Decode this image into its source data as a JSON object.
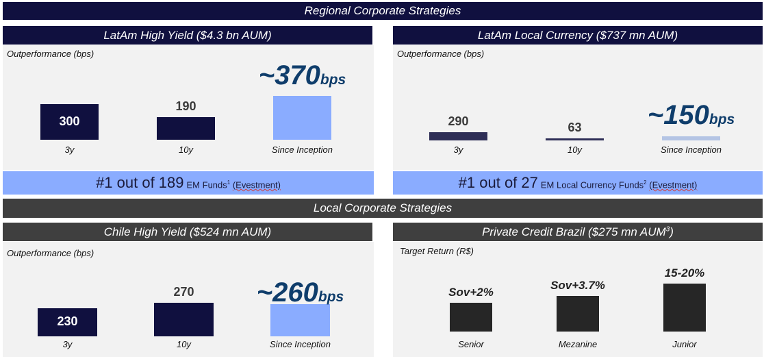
{
  "regional_banner": "Regional Corporate Strategies",
  "local_banner": "Local Corporate Strategies",
  "colors": {
    "navy": "#10103f",
    "dark_gray": "#3f3f3f",
    "light_blue": "#8aacff",
    "pale_blue": "#b4c4e4",
    "hero_text": "#0f3d6b",
    "panel_bg": "#f2f2f2"
  },
  "panels": {
    "latam_hy": {
      "title": "LatAm High Yield ($4.3 bn AUM)",
      "ranking": {
        "big": "#1 out of 189",
        "small": " EM Funds",
        "sup": "1",
        "source": "(Evestment)"
      }
    },
    "latam_lc": {
      "title": "LatAm Local Currency ($737 mn AUM)",
      "ranking": {
        "big": "#1 out of 27",
        "small": "EM Local Currency Funds",
        "sup": "2",
        "source": "(Evestment)"
      }
    },
    "chile_hy": {
      "title": "Chile High Yield ($524 mn AUM)"
    },
    "pc_brazil": {
      "title": "Private Credit Brazil ($275 mn AUM",
      "title_sup": "3",
      "title_end": ")"
    }
  },
  "chart_data": [
    {
      "type": "bar",
      "ylabel": "Outperformance (bps)",
      "categories": [
        "3y",
        "10y",
        "Since Inception"
      ],
      "values": [
        300,
        190,
        370
      ],
      "data_labels": [
        "300",
        "190",
        "~370"
      ],
      "hero_unit": "bps",
      "colors": [
        "#10103f",
        "#10103f",
        "#8aacff"
      ]
    },
    {
      "type": "bar",
      "ylabel": "Outperformance (bps)",
      "categories": [
        "3y",
        "10y",
        "Since Inception"
      ],
      "values": [
        290,
        63,
        150
      ],
      "data_labels": [
        "290",
        "63",
        "~150"
      ],
      "hero_unit": "bps",
      "colors": [
        "#2e2e56",
        "#2e2e56",
        "#b4c4e4"
      ]
    },
    {
      "type": "bar",
      "ylabel": "Outperformance (bps)",
      "categories": [
        "3y",
        "10y",
        "Since Inception"
      ],
      "values": [
        230,
        270,
        260
      ],
      "data_labels": [
        "230",
        "270",
        "~260"
      ],
      "hero_unit": "bps",
      "colors": [
        "#10103f",
        "#10103f",
        "#8aacff"
      ]
    },
    {
      "type": "bar",
      "ylabel": "Target Return (R$)",
      "categories": [
        "Senior",
        "Mezanine",
        "Junior"
      ],
      "data_labels": [
        "Sov+2%",
        "Sov+3.7%",
        "15-20%"
      ],
      "colors": [
        "#262626",
        "#262626",
        "#262626"
      ]
    }
  ]
}
